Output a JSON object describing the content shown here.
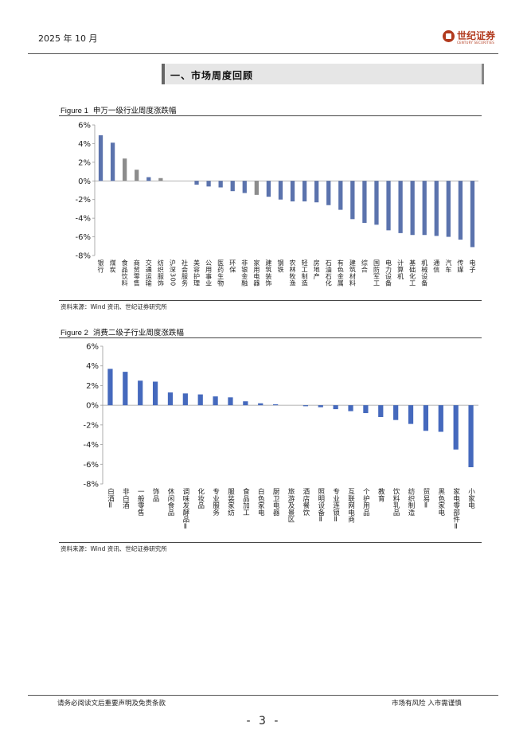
{
  "header": {
    "date": "2025 年 10 月",
    "brand_name": "世纪证券",
    "brand_sub": "CENTURY SECURITIES",
    "brand_color": "#b23a1e"
  },
  "section": {
    "title": "一、市场周度回顾"
  },
  "figure1": {
    "label": "Figure 1",
    "caption": "申万一级行业周度涨跌幅",
    "source": "资料来源：Wind 资讯、世纪证券研究所"
  },
  "figure2": {
    "label": "Figure 2",
    "caption": "消费二级子行业周度涨跌幅",
    "source": "资料来源：Wind 资讯、世纪证券研究所"
  },
  "footer": {
    "disclaimer": "请务必阅读文后重要声明及免责条款",
    "risk": "市场有风险 入市需谨慎",
    "page": "- 3 -"
  },
  "chart_data": [
    {
      "type": "bar",
      "title": "申万一级行业周度涨跌幅",
      "ylim": [
        -8,
        6
      ],
      "yticks": [
        6,
        4,
        2,
        0,
        -2,
        -4,
        -6,
        -8
      ],
      "tick_suffix": "%",
      "bar_color": "#5b73ad",
      "highlight_color": "#8c8c8c",
      "categories": [
        "银行",
        "煤炭",
        "食品饮料",
        "商贸零售",
        "交通运输",
        "纺织服饰",
        "沪深300",
        "社会服务",
        "美容护理",
        "公用事业",
        "医药生物",
        "环保",
        "非银金融",
        "家用电器",
        "建筑装饰",
        "钢铁",
        "农林牧渔",
        "轻工制造",
        "房地产",
        "石油石化",
        "有色金属",
        "建筑材料",
        "综合",
        "国防军工",
        "电力设备",
        "计算机",
        "基础化工",
        "机械设备",
        "通信",
        "汽车",
        "传媒",
        "电子"
      ],
      "values": [
        4.9,
        4.1,
        2.4,
        1.2,
        0.4,
        0.3,
        0.0,
        0.0,
        -0.4,
        -0.6,
        -0.7,
        -1.1,
        -1.3,
        -1.5,
        -1.7,
        -2.0,
        -2.2,
        -2.2,
        -2.3,
        -2.6,
        -3.1,
        -4.1,
        -4.5,
        -4.7,
        -5.3,
        -5.6,
        -5.8,
        -5.8,
        -5.9,
        -6.0,
        -6.3,
        -7.1
      ],
      "highlight": [
        2,
        3,
        5,
        13
      ]
    },
    {
      "type": "bar",
      "title": "消费二级子行业周度涨跌幅",
      "ylim": [
        -8,
        6
      ],
      "yticks": [
        6,
        4,
        2,
        0,
        -2,
        -4,
        -6,
        -8
      ],
      "tick_suffix": "%",
      "bar_color": "#4569bd",
      "categories": [
        "白酒Ⅱ",
        "非白酒",
        "一般零售",
        "饰品",
        "休闲食品",
        "调味发酵品Ⅱ",
        "化妆品",
        "专业服务",
        "服装家纺",
        "食品加工",
        "白色家电",
        "厨卫电器",
        "旅游及景区",
        "酒店餐饮",
        "照明设备Ⅱ",
        "专业连锁Ⅱ",
        "互联网电商",
        "个护用品",
        "教育",
        "饮料乳品",
        "纺织制造",
        "贸易Ⅱ",
        "黑色家电",
        "家电零部件Ⅱ",
        "小家电"
      ],
      "values": [
        3.7,
        3.4,
        2.5,
        2.4,
        1.3,
        1.2,
        1.1,
        0.9,
        0.8,
        0.4,
        0.2,
        0.1,
        0.0,
        -0.1,
        -0.2,
        -0.4,
        -0.6,
        -0.8,
        -1.2,
        -1.5,
        -1.9,
        -2.6,
        -2.7,
        -4.5,
        -6.3
      ],
      "highlight": []
    }
  ]
}
